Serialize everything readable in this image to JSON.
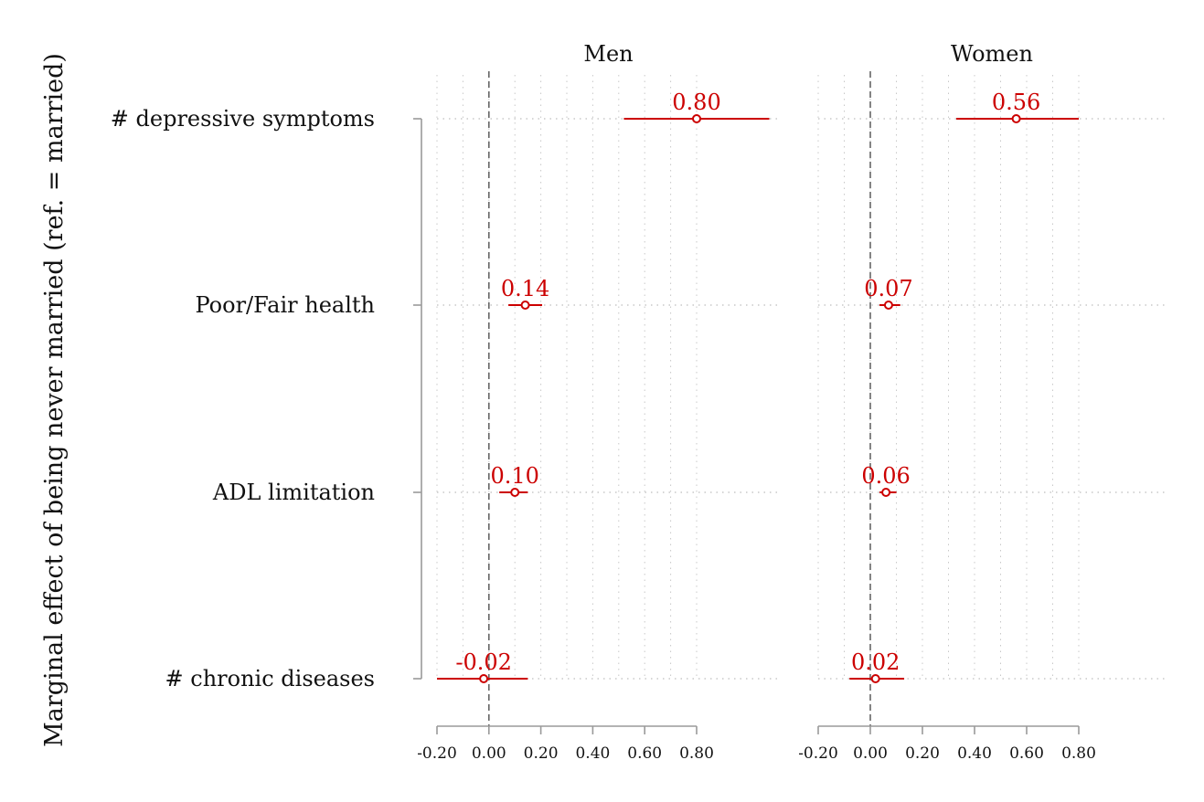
{
  "chart_data": {
    "type": "forest",
    "ylabel": "Marginal effect of being never married (ref. = married)",
    "xlim": [
      -0.2,
      0.8
    ],
    "xticks": [
      -0.2,
      0.0,
      0.2,
      0.4,
      0.6,
      0.8
    ],
    "xtick_labels": [
      "-0.20",
      "0.00",
      "0.20",
      "0.40",
      "0.60",
      "0.80"
    ],
    "reference_line": 0,
    "categories": [
      "# depressive symptoms",
      "Poor/Fair health",
      "ADL limitation",
      "# chronic diseases"
    ],
    "panels": [
      {
        "title": "Men",
        "estimates": [
          0.8,
          0.14,
          0.1,
          -0.02
        ],
        "labels": [
          "0.80",
          "0.14",
          "0.10",
          "-0.02"
        ],
        "ci_low": [
          0.52,
          0.075,
          0.04,
          -0.2
        ],
        "ci_high": [
          1.08,
          0.205,
          0.15,
          0.15
        ]
      },
      {
        "title": "Women",
        "estimates": [
          0.56,
          0.07,
          0.06,
          0.02
        ],
        "labels": [
          "0.56",
          "0.07",
          "0.06",
          "0.02"
        ],
        "ci_low": [
          0.33,
          0.035,
          0.035,
          -0.08
        ],
        "ci_high": [
          0.8,
          0.115,
          0.1,
          0.13
        ]
      }
    ],
    "colors": {
      "estimate": "#cc0000",
      "axis": "#9a9a9a",
      "grid": "#c8c8c8",
      "refline": "#666666"
    },
    "grid": true
  }
}
